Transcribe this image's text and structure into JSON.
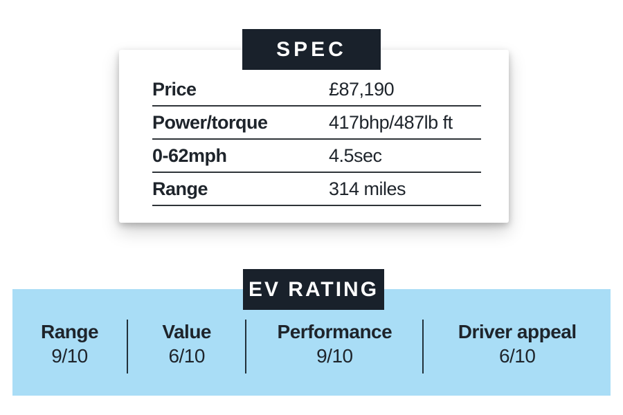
{
  "spec_card": {
    "header": "SPEC",
    "rows": [
      {
        "label": "Price",
        "value": "£87,190"
      },
      {
        "label": "Power/torque",
        "value": "417bhp/487lb ft"
      },
      {
        "label": "0-62mph",
        "value": "4.5sec"
      },
      {
        "label": "Range",
        "value": "314 miles"
      }
    ]
  },
  "ev_rating": {
    "header": "EV RATING",
    "items": [
      {
        "label": "Range",
        "score": "9/10"
      },
      {
        "label": "Value",
        "score": "6/10"
      },
      {
        "label": "Performance",
        "score": "9/10"
      },
      {
        "label": "Driver appeal",
        "score": "6/10"
      }
    ]
  },
  "colors": {
    "plaque_bg": "#19212b",
    "plaque_text": "#ffffff",
    "band_bg": "#a9ddf6",
    "text": "#1e242b",
    "rule": "#2e3338"
  }
}
